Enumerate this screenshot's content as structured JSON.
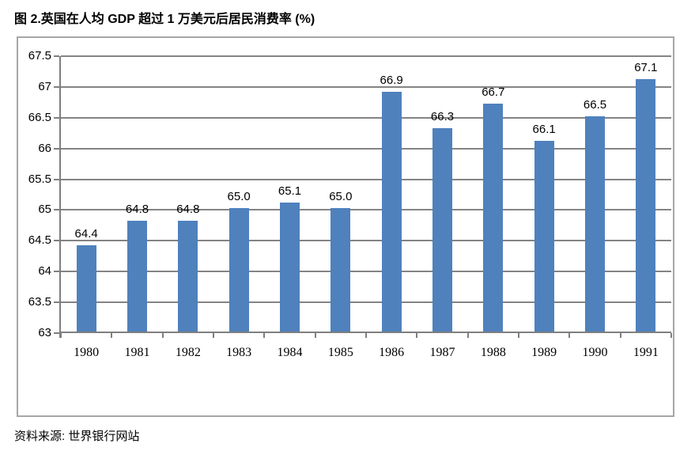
{
  "title": "图 2.英国在人均 GDP 超过 1 万美元后居民消费率 (%)",
  "source": "资料来源: 世界银行网站",
  "chart_data": {
    "type": "bar",
    "title": "图 2.英国在人均 GDP 超过 1 万美元后居民消费率 (%)",
    "categories": [
      "1980",
      "1981",
      "1982",
      "1983",
      "1984",
      "1985",
      "1986",
      "1987",
      "1988",
      "1989",
      "1990",
      "1991"
    ],
    "values": [
      64.4,
      64.8,
      64.8,
      65.0,
      65.1,
      65.0,
      66.9,
      66.3,
      66.7,
      66.1,
      66.5,
      67.1
    ],
    "value_labels": [
      "64.4",
      "64.8",
      "64.8",
      "65.0",
      "65.1",
      "65.0",
      "66.9",
      "66.3",
      "66.7",
      "66.1",
      "66.5",
      "67.1"
    ],
    "xlabel": "",
    "ylabel": "",
    "ylim": [
      63,
      67.5
    ],
    "yticks": [
      63,
      63.5,
      64,
      64.5,
      65,
      65.5,
      66,
      66.5,
      67,
      67.5
    ],
    "ytick_labels": [
      "63",
      "63.5",
      "64",
      "64.5",
      "65",
      "65.5",
      "66",
      "66.5",
      "67",
      "67.5"
    ],
    "grid": true,
    "legend": "none",
    "bar_color": "#4f81bd",
    "gridline_color": "#848484",
    "axis_color": "#7f7f7f",
    "frame_border_color": "#a6a6a6",
    "source_note": "资料来源: 世界银行网站"
  }
}
